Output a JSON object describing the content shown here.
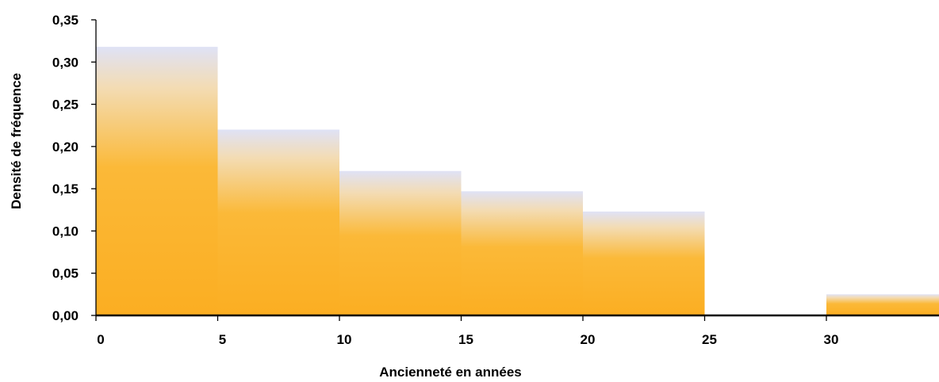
{
  "chart_data": {
    "type": "bar",
    "subtype": "histogram",
    "xlabel": "Ancienneté en années",
    "ylabel": "Densité de fréquence",
    "bins": [
      {
        "x0": 0,
        "x1": 5,
        "value": 0.318
      },
      {
        "x0": 5,
        "x1": 10,
        "value": 0.22
      },
      {
        "x0": 10,
        "x1": 15,
        "value": 0.171
      },
      {
        "x0": 15,
        "x1": 20,
        "value": 0.147
      },
      {
        "x0": 20,
        "x1": 25,
        "value": 0.123
      },
      {
        "x0": 25,
        "x1": 30,
        "value": 0
      },
      {
        "x0": 30,
        "x1": 35,
        "value": 0.025
      }
    ],
    "xlim": [
      0,
      34.5
    ],
    "ylim": [
      0,
      0.35
    ],
    "x_ticks": [
      0,
      5,
      10,
      15,
      20,
      25,
      30
    ],
    "x_tick_labels": [
      "0",
      "5",
      "10",
      "15",
      "20",
      "25",
      "30"
    ],
    "y_ticks": [
      0,
      0.05,
      0.1,
      0.15,
      0.2,
      0.25,
      0.3,
      0.35
    ],
    "y_tick_labels": [
      "0,00",
      "0,05",
      "0,10",
      "0,15",
      "0,20",
      "0,25",
      "0,30",
      "0,35"
    ],
    "grid": false,
    "legend": "none",
    "colors": {
      "bar_top": "#dfe2f6",
      "bar_mid": "#f5cf8e",
      "bar_bottom": "#fbae22",
      "axis": "#000000"
    }
  }
}
